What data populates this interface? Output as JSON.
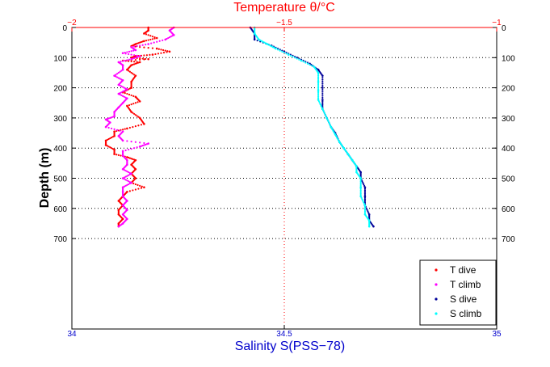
{
  "chart_data": {
    "type": "scatter",
    "title": "Temperature θ/°C",
    "xlabel": "Salinity S(PSS−78)",
    "ylabel": "Depth (m)",
    "x_bottom": {
      "lim": [
        34,
        35
      ],
      "ticks": [
        34,
        34.5,
        35
      ],
      "tick_labels": [
        "34",
        "34.5",
        "35"
      ],
      "color": "#0000cc"
    },
    "x_top": {
      "lim": [
        -2,
        -1
      ],
      "ticks": [
        -2,
        -1.5,
        -1
      ],
      "tick_labels": [
        "−2",
        "−1.5",
        "−1"
      ],
      "color": "#ff0000"
    },
    "y": {
      "lim": [
        0,
        1000
      ],
      "reversed": true,
      "ticks": [
        0,
        100,
        200,
        300,
        400,
        500,
        600,
        700
      ],
      "tick_labels": [
        "0",
        "100",
        "200",
        "300",
        "400",
        "500",
        "600",
        "700"
      ]
    },
    "grid": "dotted horizontal lines at labeled depths; dotted vertical line at S=34.5 / θ=−1.5",
    "legend_position": "bottom-right",
    "series": [
      {
        "name": "T dive",
        "axis": "temperature",
        "color": "#ff0000",
        "points": [
          [
            -1.82,
            0
          ],
          [
            -1.82,
            10
          ],
          [
            -1.83,
            20
          ],
          [
            -1.8,
            35
          ],
          [
            -1.83,
            45
          ],
          [
            -1.85,
            55
          ],
          [
            -1.86,
            62
          ],
          [
            -1.8,
            70
          ],
          [
            -1.77,
            80
          ],
          [
            -1.81,
            90
          ],
          [
            -1.85,
            95
          ],
          [
            -1.86,
            100
          ],
          [
            -1.82,
            105
          ],
          [
            -1.88,
            110
          ],
          [
            -1.84,
            115
          ],
          [
            -1.86,
            125
          ],
          [
            -1.87,
            140
          ],
          [
            -1.85,
            160
          ],
          [
            -1.86,
            180
          ],
          [
            -1.86,
            200
          ],
          [
            -1.88,
            215
          ],
          [
            -1.85,
            230
          ],
          [
            -1.84,
            245
          ],
          [
            -1.87,
            260
          ],
          [
            -1.86,
            280
          ],
          [
            -1.84,
            300
          ],
          [
            -1.83,
            320
          ],
          [
            -1.87,
            335
          ],
          [
            -1.9,
            345
          ],
          [
            -1.9,
            360
          ],
          [
            -1.92,
            375
          ],
          [
            -1.92,
            390
          ],
          [
            -1.9,
            405
          ],
          [
            -1.9,
            420
          ],
          [
            -1.87,
            430
          ],
          [
            -1.85,
            440
          ],
          [
            -1.86,
            455
          ],
          [
            -1.85,
            470
          ],
          [
            -1.86,
            485
          ],
          [
            -1.85,
            500
          ],
          [
            -1.86,
            515
          ],
          [
            -1.83,
            530
          ],
          [
            -1.87,
            545
          ],
          [
            -1.88,
            560
          ],
          [
            -1.89,
            575
          ],
          [
            -1.88,
            590
          ],
          [
            -1.89,
            605
          ],
          [
            -1.89,
            620
          ],
          [
            -1.88,
            635
          ],
          [
            -1.89,
            650
          ],
          [
            -1.89,
            660
          ]
        ]
      },
      {
        "name": "T climb",
        "axis": "temperature",
        "color": "#ff00ff",
        "points": [
          [
            -1.76,
            0
          ],
          [
            -1.77,
            10
          ],
          [
            -1.76,
            25
          ],
          [
            -1.78,
            40
          ],
          [
            -1.82,
            55
          ],
          [
            -1.86,
            65
          ],
          [
            -1.85,
            75
          ],
          [
            -1.88,
            85
          ],
          [
            -1.84,
            95
          ],
          [
            -1.86,
            105
          ],
          [
            -1.89,
            115
          ],
          [
            -1.88,
            125
          ],
          [
            -1.88,
            140
          ],
          [
            -1.9,
            160
          ],
          [
            -1.88,
            175
          ],
          [
            -1.89,
            190
          ],
          [
            -1.87,
            205
          ],
          [
            -1.89,
            220
          ],
          [
            -1.87,
            235
          ],
          [
            -1.88,
            250
          ],
          [
            -1.89,
            265
          ],
          [
            -1.9,
            280
          ],
          [
            -1.9,
            295
          ],
          [
            -1.92,
            305
          ],
          [
            -1.91,
            315
          ],
          [
            -1.92,
            330
          ],
          [
            -1.88,
            345
          ],
          [
            -1.89,
            360
          ],
          [
            -1.88,
            375
          ],
          [
            -1.82,
            385
          ],
          [
            -1.84,
            395
          ],
          [
            -1.88,
            410
          ],
          [
            -1.88,
            425
          ],
          [
            -1.87,
            440
          ],
          [
            -1.87,
            455
          ],
          [
            -1.88,
            470
          ],
          [
            -1.86,
            485
          ],
          [
            -1.88,
            500
          ],
          [
            -1.86,
            515
          ],
          [
            -1.88,
            530
          ],
          [
            -1.88,
            545
          ],
          [
            -1.88,
            560
          ],
          [
            -1.87,
            575
          ],
          [
            -1.88,
            590
          ],
          [
            -1.87,
            605
          ],
          [
            -1.88,
            620
          ],
          [
            -1.87,
            635
          ],
          [
            -1.88,
            650
          ],
          [
            -1.89,
            660
          ]
        ]
      },
      {
        "name": "S dive",
        "axis": "salinity",
        "color": "#000099",
        "points": [
          [
            34.42,
            0
          ],
          [
            34.43,
            20
          ],
          [
            34.43,
            40
          ],
          [
            34.47,
            60
          ],
          [
            34.5,
            80
          ],
          [
            34.53,
            100
          ],
          [
            34.56,
            120
          ],
          [
            34.58,
            140
          ],
          [
            34.59,
            160
          ],
          [
            34.59,
            200
          ],
          [
            34.59,
            240
          ],
          [
            34.59,
            270
          ],
          [
            34.6,
            300
          ],
          [
            34.61,
            330
          ],
          [
            34.62,
            350
          ],
          [
            34.63,
            380
          ],
          [
            34.64,
            400
          ],
          [
            34.65,
            420
          ],
          [
            34.66,
            440
          ],
          [
            34.67,
            460
          ],
          [
            34.68,
            480
          ],
          [
            34.68,
            500
          ],
          [
            34.69,
            530
          ],
          [
            34.69,
            560
          ],
          [
            34.69,
            590
          ],
          [
            34.7,
            620
          ],
          [
            34.7,
            640
          ],
          [
            34.71,
            660
          ]
        ]
      },
      {
        "name": "S climb",
        "axis": "salinity",
        "color": "#00ffff",
        "points": [
          [
            34.43,
            0
          ],
          [
            34.43,
            20
          ],
          [
            34.44,
            40
          ],
          [
            34.46,
            55
          ],
          [
            34.48,
            70
          ],
          [
            34.51,
            90
          ],
          [
            34.54,
            110
          ],
          [
            34.57,
            130
          ],
          [
            34.58,
            150
          ],
          [
            34.58,
            180
          ],
          [
            34.58,
            210
          ],
          [
            34.58,
            240
          ],
          [
            34.59,
            270
          ],
          [
            34.6,
            300
          ],
          [
            34.61,
            330
          ],
          [
            34.62,
            355
          ],
          [
            34.63,
            380
          ],
          [
            34.64,
            400
          ],
          [
            34.65,
            420
          ],
          [
            34.66,
            440
          ],
          [
            34.67,
            460
          ],
          [
            34.67,
            480
          ],
          [
            34.68,
            500
          ],
          [
            34.68,
            530
          ],
          [
            34.68,
            560
          ],
          [
            34.69,
            590
          ],
          [
            34.69,
            620
          ],
          [
            34.7,
            640
          ],
          [
            34.7,
            660
          ]
        ]
      }
    ]
  }
}
